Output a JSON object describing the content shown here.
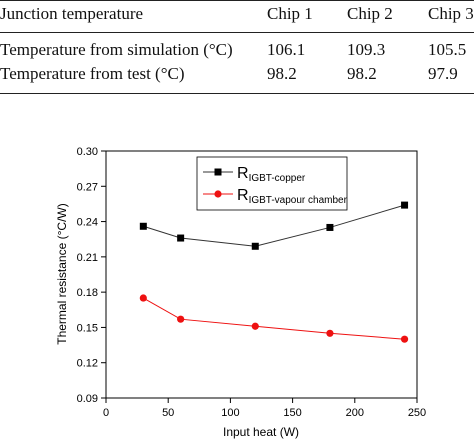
{
  "table": {
    "headers": [
      "Junction temperature",
      "Chip 1",
      "Chip 2",
      "Chip 3"
    ],
    "rows": [
      [
        "Temperature from simulation (°C)",
        "106.1",
        "109.3",
        "105.5"
      ],
      [
        "Temperature from test (°C)",
        "98.2",
        "98.2",
        "97.9"
      ]
    ]
  },
  "chart_data": {
    "type": "line",
    "xlabel": "Input heat (W)",
    "ylabel": "Thermal resistance (°C/W)",
    "xlim": [
      0,
      250
    ],
    "ylim": [
      0.09,
      0.3
    ],
    "xticks": [
      0,
      50,
      100,
      150,
      200,
      250
    ],
    "yticks": [
      0.09,
      0.12,
      0.15,
      0.18,
      0.21,
      0.24,
      0.27,
      0.3
    ],
    "ytick_labels": [
      "0.09",
      "0.12",
      "0.15",
      "0.18",
      "0.21",
      "0.24",
      "0.27",
      "0.30"
    ],
    "grid": false,
    "legend": "top-right",
    "series": [
      {
        "name": "R",
        "subscript": "IGBT-copper",
        "marker": "square",
        "color": "#000000",
        "line_color": "#333333",
        "x": [
          30,
          60,
          120,
          180,
          240
        ],
        "y": [
          0.236,
          0.226,
          0.219,
          0.235,
          0.254
        ]
      },
      {
        "name": "R",
        "subscript": "IGBT-vapour chamber",
        "marker": "circle",
        "color": "#ee1111",
        "line_color": "#ee1111",
        "x": [
          30,
          60,
          120,
          180,
          240
        ],
        "y": [
          0.175,
          0.157,
          0.151,
          0.145,
          0.14
        ]
      }
    ]
  }
}
